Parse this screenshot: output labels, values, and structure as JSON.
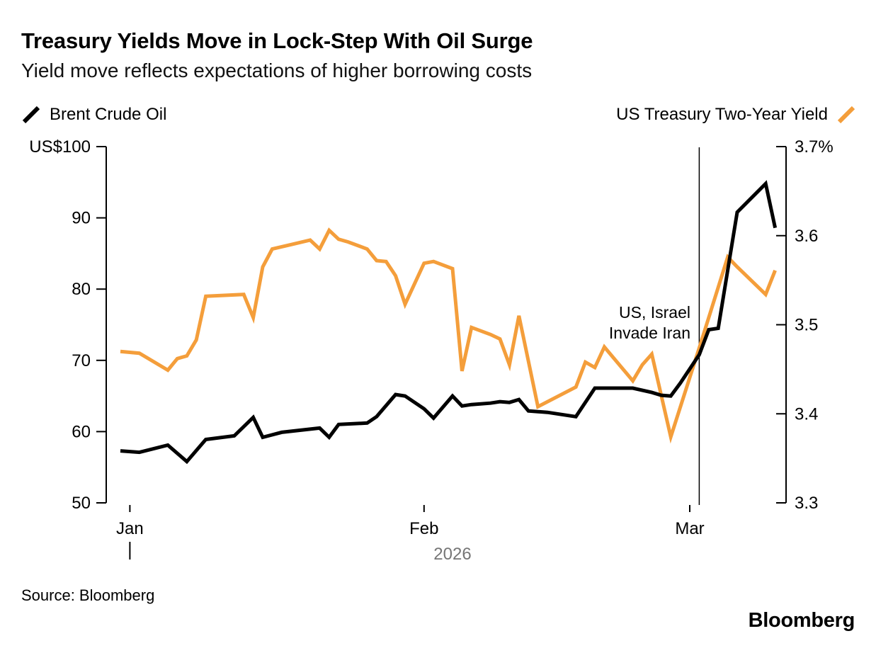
{
  "header": {
    "title": "Treasury Yields Move in Lock-Step With Oil Surge",
    "subtitle": "Yield move reflects expectations of higher borrowing costs"
  },
  "legend": {
    "left": {
      "label": "Brent Crude Oil",
      "color": "#000000"
    },
    "right": {
      "label": "US Treasury Two-Year Yield",
      "color": "#F49E3B"
    }
  },
  "annotation": {
    "lines": [
      "US, Israel",
      "Invade Iran"
    ],
    "day": 61
  },
  "footer": {
    "source": "Source: Bloomberg",
    "brand": "Bloomberg"
  },
  "chart_data": {
    "type": "line",
    "grid": false,
    "legend_position": "top",
    "x_axis": {
      "unit": "day index (daily points)",
      "month_ticks": [
        {
          "label": "Jan",
          "day": 1
        },
        {
          "label": "Feb",
          "day": 32
        },
        {
          "label": "Mar",
          "day": 60
        }
      ],
      "year": {
        "label": "2026",
        "label_day": 35,
        "tick_day": 1
      },
      "domain_days": [
        0,
        69
      ]
    },
    "left_axis": {
      "series": "Brent Crude Oil",
      "range": [
        50,
        100
      ],
      "ticks": [
        {
          "label": "US$100",
          "value": 100
        },
        {
          "label": "90",
          "value": 90
        },
        {
          "label": "80",
          "value": 80
        },
        {
          "label": "70",
          "value": 70
        },
        {
          "label": "60",
          "value": 60
        },
        {
          "label": "50",
          "value": 50
        }
      ]
    },
    "right_axis": {
      "series": "US Treasury Two-Year Yield",
      "range": [
        3.3,
        3.7
      ],
      "ticks": [
        {
          "label": "3.7%",
          "value": 3.7
        },
        {
          "label": "3.6",
          "value": 3.6
        },
        {
          "label": "3.5",
          "value": 3.5
        },
        {
          "label": "3.4",
          "value": 3.4
        },
        {
          "label": "3.3",
          "value": 3.3
        }
      ]
    },
    "series": [
      {
        "name": "US Treasury Two-Year Yield",
        "axis": "right",
        "color": "#F49E3B",
        "points": [
          [
            0,
            3.47
          ],
          [
            2,
            3.468
          ],
          [
            5,
            3.449
          ],
          [
            6,
            3.462
          ],
          [
            7,
            3.465
          ],
          [
            8,
            3.483
          ],
          [
            9,
            3.532
          ],
          [
            13,
            3.534
          ],
          [
            14,
            3.508
          ],
          [
            15,
            3.565
          ],
          [
            16,
            3.585
          ],
          [
            18,
            3.59
          ],
          [
            20,
            3.595
          ],
          [
            21,
            3.585
          ],
          [
            22,
            3.606
          ],
          [
            23,
            3.596
          ],
          [
            24,
            3.593
          ],
          [
            26,
            3.585
          ],
          [
            27,
            3.572
          ],
          [
            28,
            3.571
          ],
          [
            29,
            3.555
          ],
          [
            30,
            3.523
          ],
          [
            32,
            3.569
          ],
          [
            33,
            3.571
          ],
          [
            35,
            3.563
          ],
          [
            36,
            3.448
          ],
          [
            37,
            3.497
          ],
          [
            39,
            3.489
          ],
          [
            40,
            3.484
          ],
          [
            41,
            3.455
          ],
          [
            42,
            3.51
          ],
          [
            44,
            3.408
          ],
          [
            48,
            3.43
          ],
          [
            49,
            3.458
          ],
          [
            50,
            3.452
          ],
          [
            51,
            3.475
          ],
          [
            54,
            3.437
          ],
          [
            55,
            3.455
          ],
          [
            56,
            3.467
          ],
          [
            58,
            3.374
          ],
          [
            61,
            3.474
          ],
          [
            64,
            3.576
          ],
          [
            65,
            3.565
          ],
          [
            68,
            3.534
          ],
          [
            69,
            3.561
          ]
        ]
      },
      {
        "name": "Brent Crude Oil",
        "axis": "left",
        "color": "#000000",
        "points": [
          [
            0,
            57.3
          ],
          [
            2,
            57.1
          ],
          [
            5,
            58.1
          ],
          [
            7,
            55.8
          ],
          [
            9,
            58.9
          ],
          [
            12,
            59.4
          ],
          [
            14,
            62.0
          ],
          [
            15,
            59.2
          ],
          [
            17,
            59.9
          ],
          [
            21,
            60.5
          ],
          [
            22,
            59.2
          ],
          [
            23,
            61.0
          ],
          [
            26,
            61.2
          ],
          [
            27,
            62.1
          ],
          [
            29,
            65.2
          ],
          [
            30,
            65.0
          ],
          [
            32,
            63.2
          ],
          [
            33,
            61.9
          ],
          [
            35,
            65.0
          ],
          [
            36,
            63.6
          ],
          [
            37,
            63.8
          ],
          [
            39,
            64.0
          ],
          [
            40,
            64.2
          ],
          [
            41,
            64.1
          ],
          [
            42,
            64.5
          ],
          [
            43,
            62.9
          ],
          [
            45,
            62.7
          ],
          [
            48,
            62.1
          ],
          [
            50,
            66.1
          ],
          [
            54,
            66.1
          ],
          [
            56,
            65.5
          ],
          [
            57,
            65.1
          ],
          [
            58,
            65.0
          ],
          [
            59,
            66.8
          ],
          [
            61,
            70.8
          ],
          [
            62,
            74.3
          ],
          [
            63,
            74.5
          ],
          [
            65,
            90.8
          ],
          [
            68,
            94.8
          ],
          [
            69,
            88.6
          ]
        ]
      }
    ]
  }
}
